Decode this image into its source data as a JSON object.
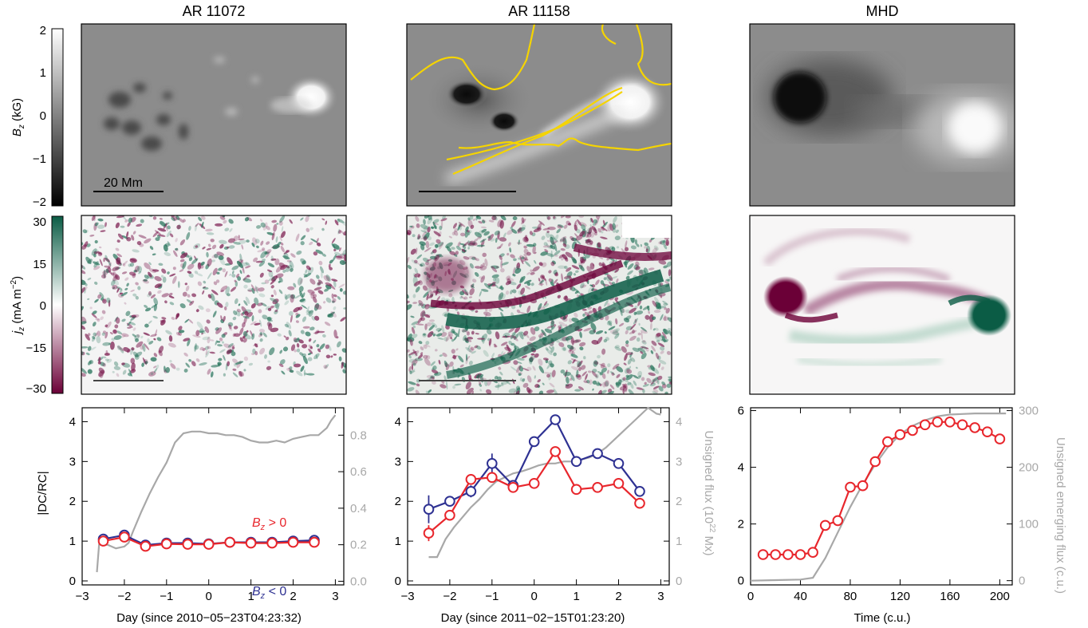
{
  "columns": [
    {
      "title": "AR 11072",
      "scale_bar_label": "20 Mm"
    },
    {
      "title": "AR 11158",
      "scale_bar_label": ""
    },
    {
      "title": "MHD",
      "scale_bar_label": ""
    }
  ],
  "colorbars": [
    {
      "label": "B_z (kG)",
      "label_main": "B",
      "label_sub": "z",
      "label_rest": " (kG)",
      "ticks": [
        "2",
        "1",
        "0",
        "−1",
        "−2"
      ],
      "colors": [
        "#ffffff",
        "#000000"
      ]
    },
    {
      "label": "j_z (mA m^-2)",
      "label_main": "j",
      "label_sub": "z",
      "label_rest": " (mA m",
      "label_sup": "−2",
      "label_end": ")",
      "ticks": [
        "30",
        "15",
        "0",
        "−15",
        "−30"
      ],
      "colors": [
        "#0b5c45",
        "#ffffff",
        "#6b0037"
      ]
    }
  ],
  "colors": {
    "dc_rc_positive": "#e8262c",
    "dc_rc_negative": "#2e3192",
    "flux": "#a8a8a8",
    "contour": "#f5d400"
  },
  "legend": {
    "pos_main": "B",
    "pos_sub": "z",
    "pos_rest": " > 0",
    "neg_main": "B",
    "neg_sub": "z",
    "neg_rest": " < 0"
  },
  "chart_data": [
    {
      "type": "line",
      "xlabel": "Day (since 2010−05−23T04:23:32)",
      "ylabel": "|DC/RC|",
      "xlim": [
        -3,
        3.2
      ],
      "ylim": [
        -0.1,
        4.35
      ],
      "xticks": [
        "−3",
        "−2",
        "−1",
        "0",
        "1",
        "2",
        "3"
      ],
      "yticks": [
        "0",
        "1",
        "2",
        "3",
        "4"
      ],
      "y2lim": [
        -0.02,
        0.95
      ],
      "y2ticks": [
        "0.0",
        "0.2",
        "0.4",
        "0.6",
        "0.8"
      ],
      "x": [
        -2.5,
        -2.0,
        -1.5,
        -1.0,
        -0.5,
        0.0,
        0.5,
        1.0,
        1.5,
        2.0,
        2.5
      ],
      "series": [
        {
          "name": "B_z > 0",
          "values": [
            1.0,
            1.1,
            0.87,
            0.93,
            0.92,
            0.92,
            0.97,
            0.95,
            0.95,
            0.97,
            0.97
          ],
          "errors": [
            0.05,
            0.08,
            0.04,
            0.04,
            0.03,
            0.03,
            0.03,
            0.03,
            0.03,
            0.03,
            0.04
          ]
        },
        {
          "name": "B_z < 0",
          "values": [
            1.05,
            1.15,
            0.9,
            0.95,
            0.95,
            0.93,
            0.97,
            0.97,
            0.97,
            1.0,
            1.02
          ],
          "errors": [
            0.06,
            0.1,
            0.04,
            0.04,
            0.03,
            0.03,
            0.03,
            0.03,
            0.03,
            0.03,
            0.04
          ]
        },
        {
          "name": "Unsigned flux",
          "axis": "right",
          "x": [
            -2.65,
            -2.6,
            -2.5,
            -2.4,
            -2.2,
            -2.0,
            -1.9,
            -1.8,
            -1.6,
            -1.4,
            -1.2,
            -1.0,
            -0.8,
            -0.6,
            -0.4,
            -0.2,
            0.0,
            0.2,
            0.4,
            0.6,
            0.8,
            1.0,
            1.2,
            1.4,
            1.6,
            1.8,
            2.0,
            2.2,
            2.4,
            2.6,
            2.8,
            2.9,
            3.0
          ],
          "values": [
            0.05,
            0.2,
            0.2,
            0.2,
            0.18,
            0.19,
            0.21,
            0.27,
            0.38,
            0.48,
            0.57,
            0.65,
            0.76,
            0.81,
            0.82,
            0.82,
            0.81,
            0.81,
            0.8,
            0.8,
            0.79,
            0.77,
            0.76,
            0.76,
            0.77,
            0.76,
            0.78,
            0.79,
            0.8,
            0.8,
            0.84,
            0.88,
            0.91
          ]
        }
      ]
    },
    {
      "type": "line",
      "xlabel": "Day (since 2011−02−15T01:23:20)",
      "ylabel": "",
      "xlim": [
        -3,
        3.2
      ],
      "ylim": [
        -0.1,
        4.35
      ],
      "xticks": [
        "−3",
        "−2",
        "−1",
        "0",
        "1",
        "2",
        "3"
      ],
      "yticks": [
        "0",
        "1",
        "2",
        "3",
        "4"
      ],
      "y2label": "Unsigned flux (10^22 Mx)",
      "y2label_main": "Unsigned flux (10",
      "y2label_sup": "22",
      "y2label_end": " Mx)",
      "y2lim": [
        -0.1,
        4.35
      ],
      "y2ticks": [
        "0",
        "1",
        "2",
        "3",
        "4"
      ],
      "x": [
        -2.5,
        -2.0,
        -1.5,
        -1.0,
        -0.5,
        0.0,
        0.5,
        1.0,
        1.5,
        2.0,
        2.5
      ],
      "series": [
        {
          "name": "B_z > 0",
          "values": [
            1.2,
            1.65,
            2.55,
            2.6,
            2.35,
            2.45,
            3.25,
            2.3,
            2.35,
            2.45,
            1.95
          ],
          "errors": [
            0.2,
            0.1,
            0.1,
            0.1,
            0.08,
            0.08,
            0.1,
            0.08,
            0.08,
            0.08,
            0.08
          ]
        },
        {
          "name": "B_z < 0",
          "values": [
            1.8,
            2.0,
            2.25,
            2.95,
            2.4,
            3.5,
            4.05,
            3.0,
            3.2,
            2.95,
            2.25
          ],
          "errors": [
            0.35,
            0.12,
            0.15,
            0.25,
            0.12,
            0.12,
            0.12,
            0.1,
            0.1,
            0.1,
            0.1
          ]
        },
        {
          "name": "Unsigned flux",
          "axis": "right",
          "x": [
            -2.5,
            -2.3,
            -2.1,
            -1.9,
            -1.7,
            -1.5,
            -1.3,
            -1.1,
            -0.9,
            -0.7,
            -0.5,
            -0.3,
            -0.1,
            0.1,
            0.3,
            0.5,
            0.7,
            0.9,
            1.1,
            1.3,
            1.5,
            1.7,
            1.9,
            2.1,
            2.3,
            2.5,
            2.7,
            2.9,
            3.0
          ],
          "values": [
            0.6,
            0.6,
            1.05,
            1.35,
            1.6,
            1.85,
            2.05,
            2.3,
            2.5,
            2.6,
            2.7,
            2.75,
            2.82,
            2.9,
            2.95,
            2.95,
            3.0,
            3.0,
            3.05,
            3.1,
            3.2,
            3.35,
            3.55,
            3.75,
            3.95,
            4.15,
            4.35,
            4.2,
            4.18
          ]
        }
      ]
    },
    {
      "type": "line",
      "xlabel": "Time (c.u.)",
      "ylabel": "",
      "xlim": [
        0,
        210
      ],
      "ylim": [
        -0.15,
        6.1
      ],
      "xticks": [
        "0",
        "40",
        "80",
        "120",
        "160",
        "200"
      ],
      "xtick_values": [
        0,
        40,
        80,
        120,
        160,
        200
      ],
      "yticks": [
        "0",
        "2",
        "4",
        "6"
      ],
      "ytick_values": [
        0,
        2,
        4,
        6
      ],
      "y2label": "Unsigned emerging flux (c.u.)",
      "y2lim": [
        -7.5,
        305
      ],
      "y2ticks": [
        "0",
        "100",
        "200",
        "300"
      ],
      "y2tick_values": [
        0,
        100,
        200,
        300
      ],
      "x": [
        10,
        20,
        30,
        40,
        50,
        60,
        70,
        80,
        90,
        100,
        110,
        120,
        130,
        140,
        150,
        160,
        170,
        180,
        190,
        200
      ],
      "series": [
        {
          "name": "DC/RC",
          "values": [
            0.92,
            0.92,
            0.92,
            0.92,
            1.0,
            1.95,
            2.12,
            3.3,
            3.35,
            4.2,
            4.9,
            5.15,
            5.3,
            5.5,
            5.6,
            5.6,
            5.5,
            5.4,
            5.25,
            5.0
          ]
        },
        {
          "name": "Unsigned emerging flux",
          "axis": "right",
          "x": [
            0,
            20,
            40,
            50,
            60,
            70,
            80,
            90,
            100,
            110,
            120,
            130,
            140,
            150,
            160,
            170,
            180,
            190,
            200,
            205
          ],
          "values": [
            0,
            1,
            2,
            5,
            40,
            85,
            130,
            170,
            205,
            235,
            258,
            273,
            283,
            290,
            293,
            294,
            295,
            295,
            295,
            295
          ]
        }
      ]
    }
  ]
}
